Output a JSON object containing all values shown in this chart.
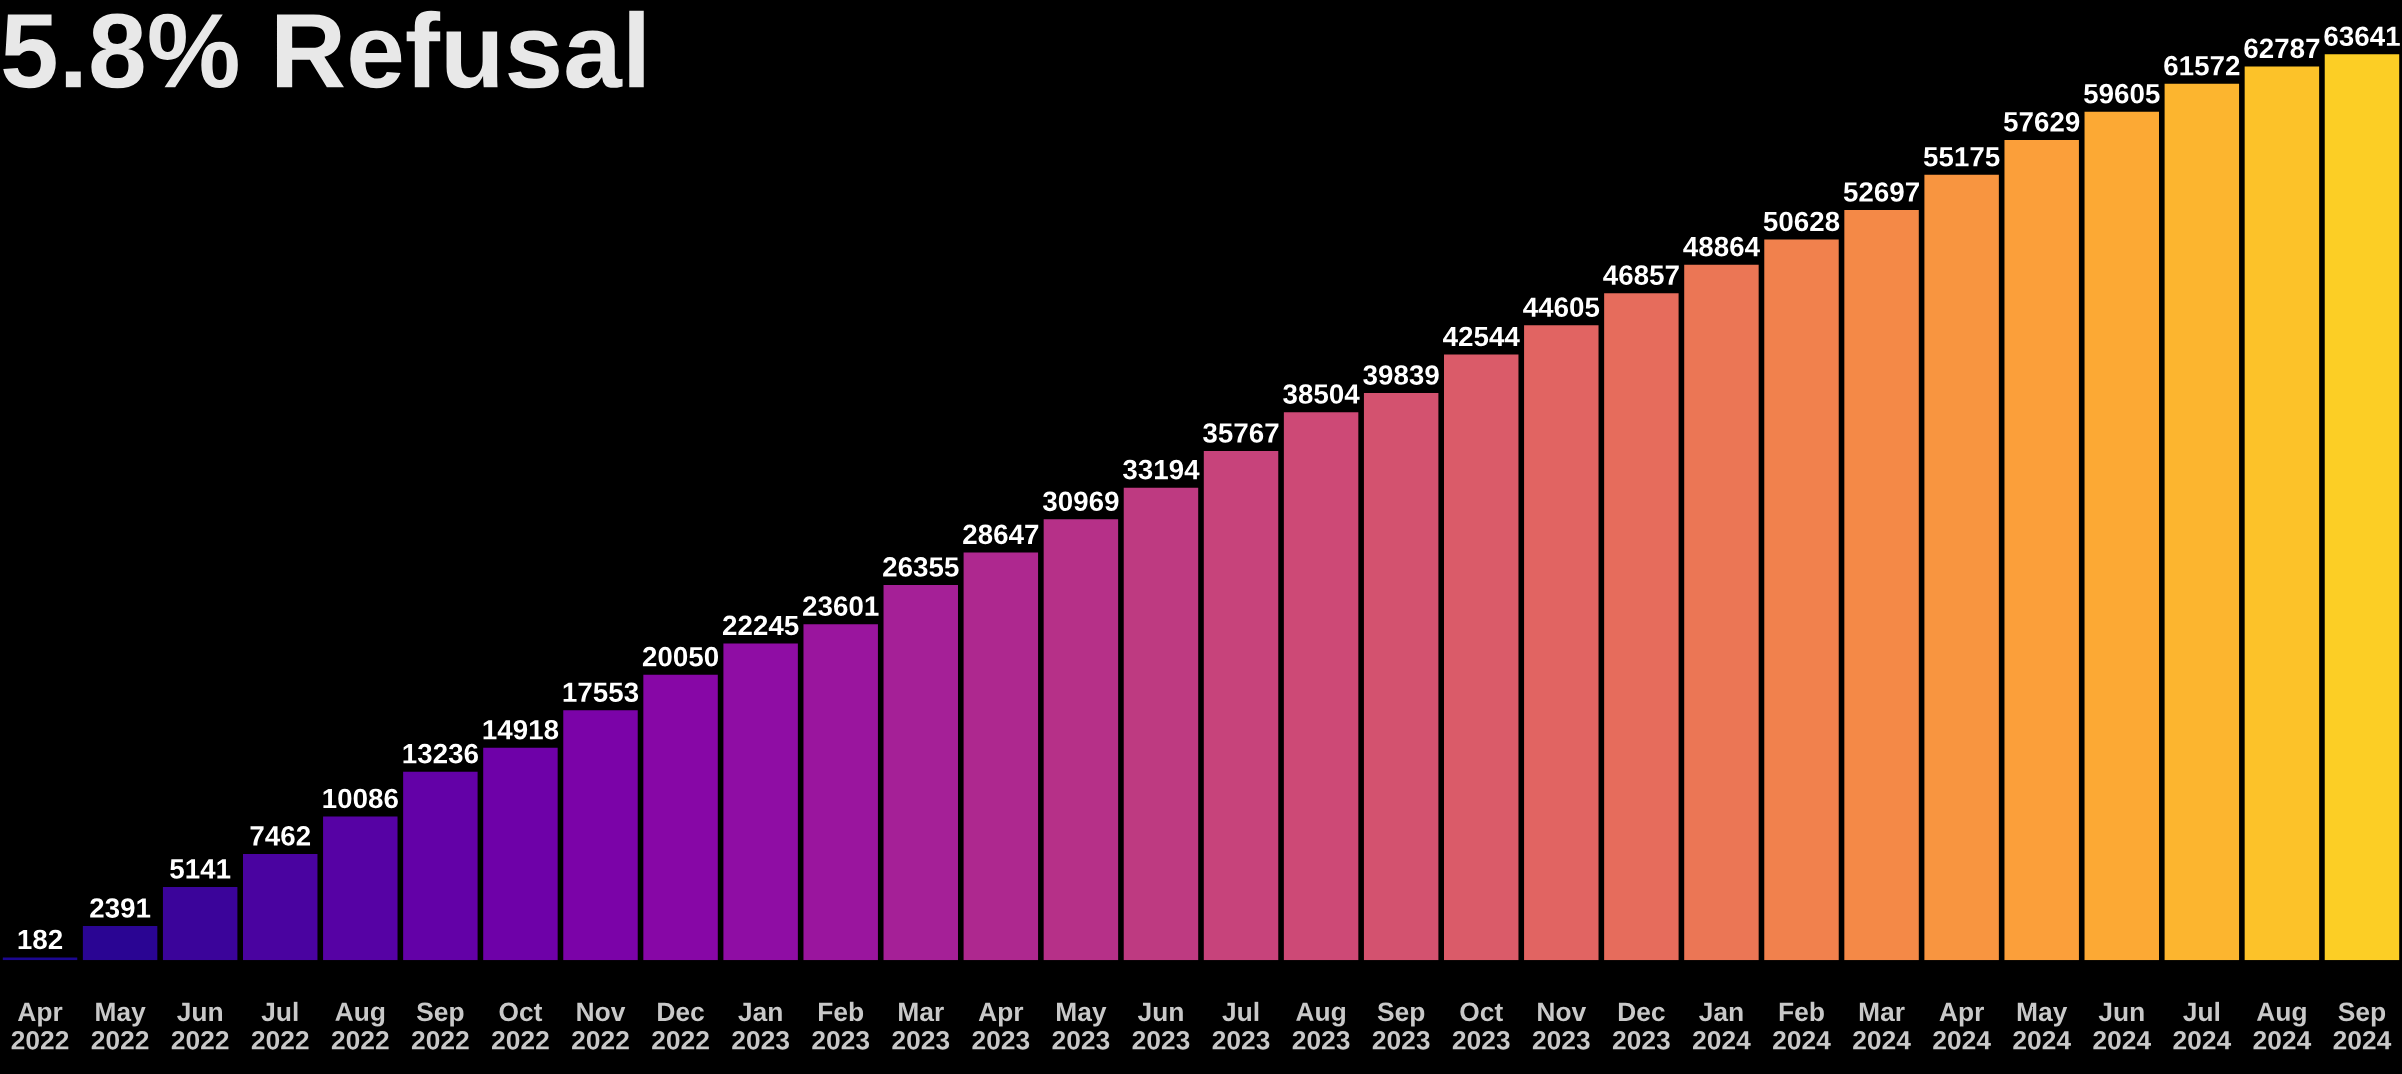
{
  "chart_data": {
    "type": "bar",
    "title": "5.8% Refusal",
    "categories": [
      "Apr\n2022",
      "May\n2022",
      "Jun\n2022",
      "Jul\n2022",
      "Aug\n2022",
      "Sep\n2022",
      "Oct\n2022",
      "Nov\n2022",
      "Dec\n2022",
      "Jan\n2023",
      "Feb\n2023",
      "Mar\n2023",
      "Apr\n2023",
      "May\n2023",
      "Jun\n2023",
      "Jul\n2023",
      "Aug\n2023",
      "Sep\n2023",
      "Oct\n2023",
      "Nov\n2023",
      "Dec\n2023",
      "Jan\n2024",
      "Feb\n2024",
      "Mar\n2024",
      "Apr\n2024",
      "May\n2024",
      "Jun\n2024",
      "Jul\n2024",
      "Aug\n2024",
      "Sep\n2024"
    ],
    "values": [
      182,
      2391,
      5141,
      7462,
      10086,
      13236,
      14918,
      17553,
      20050,
      22245,
      23601,
      26355,
      28647,
      30969,
      33194,
      35767,
      38504,
      39839,
      42544,
      44605,
      46857,
      48864,
      50628,
      52697,
      55175,
      57629,
      59605,
      61572,
      62787,
      63641
    ],
    "colors": [
      "#1c0790",
      "#2a0593",
      "#3b049a",
      "#4a03a0",
      "#5602a4",
      "#6301a7",
      "#6e01a8",
      "#7b03a8",
      "#8707a6",
      "#8f0da4",
      "#9a159e",
      "#a52097",
      "#ae288f",
      "#b63088",
      "#be3a81",
      "#c7437b",
      "#cd4976",
      "#d3526f",
      "#da5b69",
      "#e16462",
      "#e66c5c",
      "#eb7655",
      "#f1814d",
      "#f48947",
      "#f89540",
      "#fb9f3a",
      "#fca934",
      "#fcb52f",
      "#fcc229",
      "#fcce25"
    ],
    "data_labels": true,
    "grid": false,
    "legend": false,
    "tick_labels": "x"
  }
}
